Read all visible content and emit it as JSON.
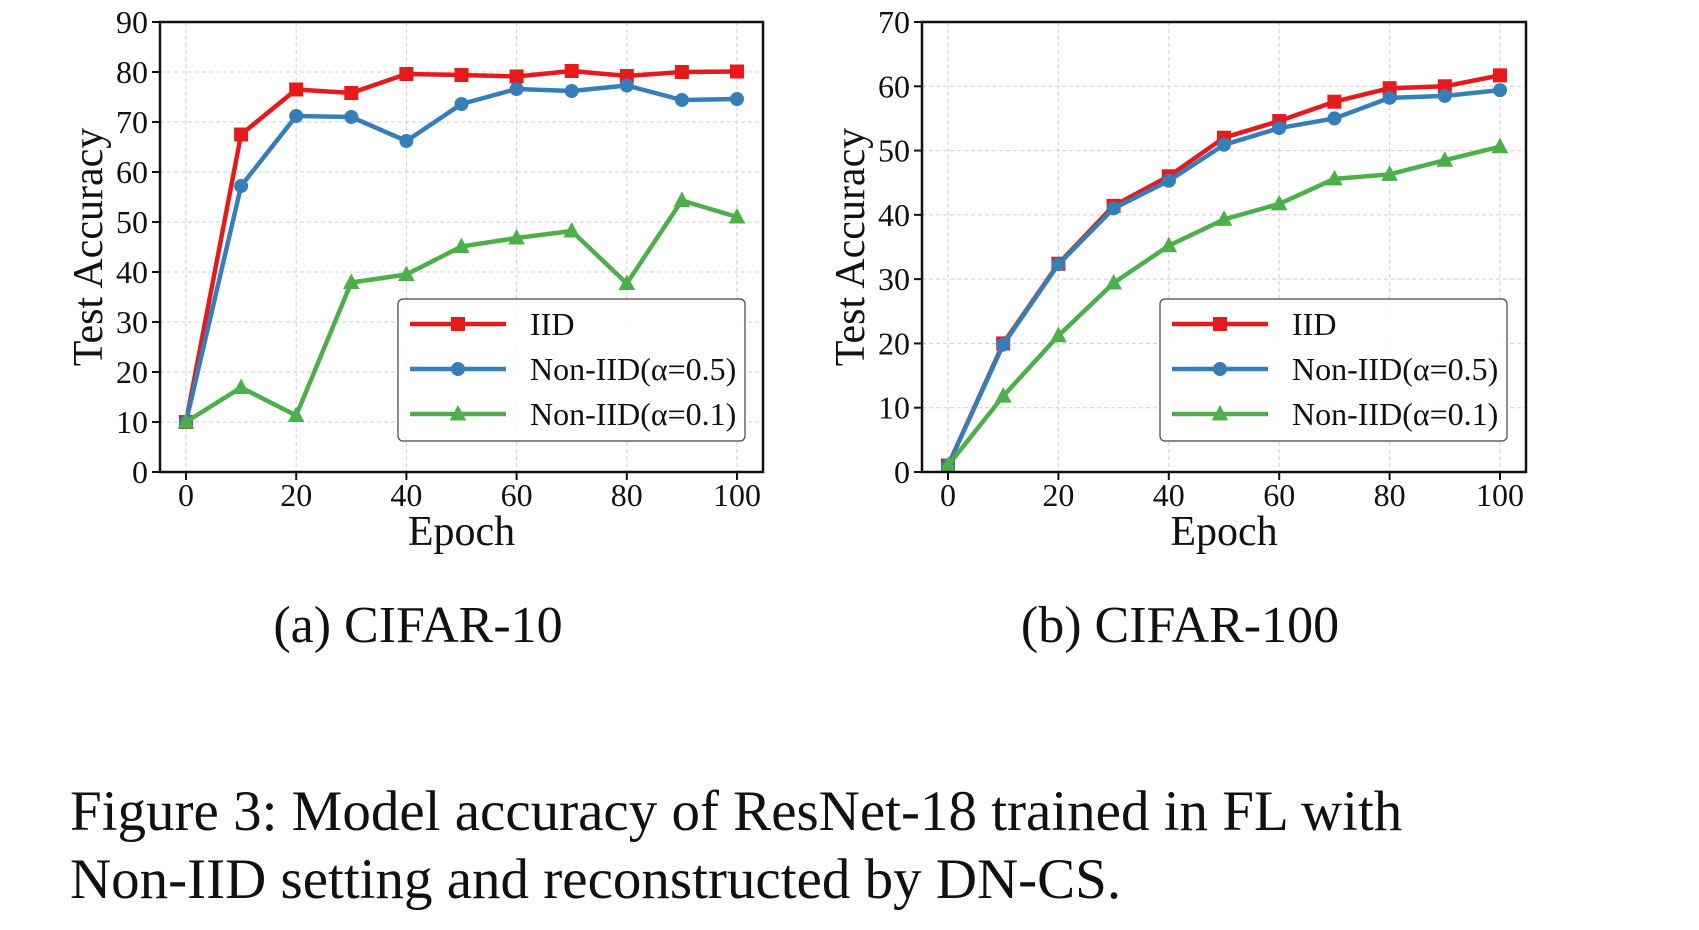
{
  "chart_data": [
    {
      "type": "line",
      "subcaption": "(a) CIFAR-10",
      "xlabel": "Epoch",
      "ylabel": "Test Accuracy",
      "xlim": [
        0,
        100
      ],
      "ylim": [
        0,
        90
      ],
      "xticks": [
        0,
        20,
        40,
        60,
        80,
        100
      ],
      "yticks": [
        0,
        10,
        20,
        30,
        40,
        50,
        60,
        70,
        80,
        90
      ],
      "grid": true,
      "legend_position": "lower-right",
      "x": [
        0,
        10,
        20,
        30,
        40,
        50,
        60,
        70,
        80,
        90,
        100
      ],
      "series": [
        {
          "name": "IID",
          "color": "#e41a1c",
          "marker": "square",
          "values": [
            10,
            67.5,
            76.5,
            75.8,
            79.6,
            79.4,
            79.1,
            80.2,
            79.2,
            80.0,
            80.1
          ]
        },
        {
          "name": "Non-IID(α=0.5)",
          "color": "#377eb8",
          "marker": "circle",
          "values": [
            10,
            57.2,
            71.2,
            71.0,
            66.2,
            73.6,
            76.6,
            76.2,
            77.3,
            74.4,
            74.6
          ]
        },
        {
          "name": "Non-IID(α=0.1)",
          "color": "#4daf4a",
          "marker": "triangle",
          "values": [
            10,
            16.9,
            11.3,
            37.9,
            39.5,
            45.1,
            46.8,
            48.2,
            37.7,
            54.3,
            51.0
          ]
        }
      ]
    },
    {
      "type": "line",
      "subcaption": "(b) CIFAR-100",
      "xlabel": "Epoch",
      "ylabel": "Test Accuracy",
      "xlim": [
        0,
        100
      ],
      "ylim": [
        0,
        70
      ],
      "xticks": [
        0,
        20,
        40,
        60,
        80,
        100
      ],
      "yticks": [
        0,
        10,
        20,
        30,
        40,
        50,
        60,
        70
      ],
      "grid": true,
      "legend_position": "lower-right",
      "x": [
        0,
        10,
        20,
        30,
        40,
        50,
        60,
        70,
        80,
        90,
        100
      ],
      "series": [
        {
          "name": "IID",
          "color": "#e41a1c",
          "marker": "square",
          "values": [
            1,
            20.0,
            32.4,
            41.4,
            46.0,
            52.0,
            54.6,
            57.6,
            59.7,
            60.0,
            61.7
          ]
        },
        {
          "name": "Non-IID(α=0.5)",
          "color": "#377eb8",
          "marker": "circle",
          "values": [
            1,
            19.8,
            32.3,
            41.0,
            45.3,
            50.9,
            53.5,
            55.0,
            58.2,
            58.5,
            59.4
          ]
        },
        {
          "name": "Non-IID(α=0.1)",
          "color": "#4daf4a",
          "marker": "triangle",
          "values": [
            1,
            11.8,
            21.2,
            29.4,
            35.2,
            39.3,
            41.7,
            45.6,
            46.3,
            48.5,
            50.6
          ]
        }
      ]
    }
  ],
  "caption": {
    "line1": "Figure 3: Model accuracy of ResNet-18 trained in FL with",
    "line2": "Non-IID setting and reconstructed by DN-CS."
  }
}
